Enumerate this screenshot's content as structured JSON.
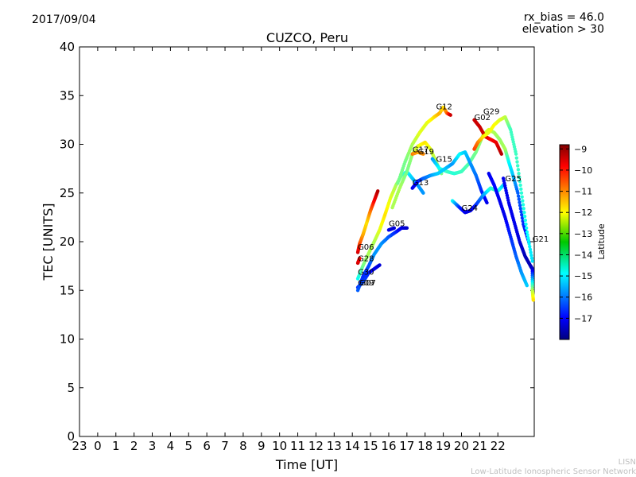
{
  "header": {
    "date": "2017/09/04",
    "rx_bias": "rx_bias = 46.0",
    "elevation": "elevation > 30"
  },
  "footer": {
    "line1": "LISN",
    "line2": "Low-Latitude Ionospheric Sensor Network"
  },
  "chart_data": {
    "type": "scatter",
    "title": "CUZCO, Peru",
    "xlabel": "Time [UT]",
    "ylabel": "TEC [UNITS]",
    "xlim": [
      -1,
      24
    ],
    "ylim": [
      0,
      40
    ],
    "x_tick_values": [
      -1,
      0,
      1,
      2,
      3,
      4,
      5,
      6,
      7,
      8,
      9,
      10,
      11,
      12,
      13,
      14,
      15,
      16,
      17,
      18,
      19,
      20,
      21,
      22
    ],
    "x_tick_labels": [
      "23",
      "0",
      "1",
      "2",
      "3",
      "4",
      "5",
      "6",
      "7",
      "8",
      "9",
      "10",
      "11",
      "12",
      "13",
      "14",
      "15",
      "16",
      "17",
      "18",
      "19",
      "20",
      "21",
      "22"
    ],
    "y_ticks": [
      0,
      5,
      10,
      15,
      20,
      25,
      30,
      35,
      40
    ],
    "colorbar": {
      "label": "Latitude",
      "range": [
        -18,
        -8.8
      ],
      "ticks": [
        -9,
        -10,
        -11,
        -12,
        -13,
        -14,
        -15,
        -16,
        -17
      ],
      "tick_labels": [
        "−9",
        "−10",
        "−11",
        "−12",
        "−13",
        "−14",
        "−15",
        "−16",
        "−17"
      ],
      "colormap": "jet"
    },
    "series": [
      {
        "name": "G06",
        "label_at": [
          14.3,
          19.2
        ],
        "points": [
          [
            14.3,
            18.9,
            -9.5
          ],
          [
            14.4,
            19.8,
            -10.5
          ],
          [
            14.6,
            20.8,
            -11.5
          ],
          [
            14.8,
            22.0,
            -12
          ],
          [
            15.0,
            23.2,
            -11
          ],
          [
            15.2,
            24.2,
            -10
          ],
          [
            15.4,
            25.2,
            -9.3
          ]
        ]
      },
      {
        "name": "G28",
        "label_at": [
          14.3,
          18.0
        ],
        "points": [
          [
            14.3,
            17.8,
            -9.5
          ],
          [
            14.4,
            18.3,
            -10
          ]
        ]
      },
      {
        "name": "G30",
        "label_at": [
          14.3,
          16.6
        ],
        "points": [
          [
            14.3,
            16.2,
            -14.5
          ],
          [
            14.6,
            17.6,
            -13.5
          ],
          [
            14.9,
            18.8,
            -13
          ],
          [
            15.2,
            20.0,
            -13
          ],
          [
            15.5,
            21.2,
            -12.5
          ],
          [
            15.8,
            22.8,
            -12
          ],
          [
            16.1,
            24.5,
            -12.5
          ],
          [
            16.4,
            25.8,
            -13
          ],
          [
            16.7,
            26.8,
            -13.5
          ],
          [
            17.0,
            27.2,
            -14.5
          ],
          [
            17.3,
            26.5,
            -15
          ],
          [
            17.6,
            25.8,
            -15.5
          ],
          [
            17.9,
            25.0,
            -15.5
          ]
        ]
      },
      {
        "name": "G07",
        "label_at": [
          14.4,
          15.5
        ],
        "points": [
          [
            14.3,
            15.3,
            -16.5
          ],
          [
            14.6,
            15.9,
            -16.2
          ],
          [
            14.9,
            16.8,
            -16.5
          ],
          [
            15.2,
            17.2,
            -17
          ],
          [
            15.5,
            17.6,
            -17.2
          ]
        ]
      },
      {
        "name": "G09",
        "label_at": [
          14.3,
          15.5
        ],
        "points": [
          [
            14.3,
            15.0,
            -16
          ],
          [
            14.6,
            16.5,
            -16.5
          ],
          [
            14.9,
            17.5,
            -16.2
          ],
          [
            15.2,
            18.7,
            -15.5
          ],
          [
            15.6,
            19.8,
            -15.5
          ],
          [
            16.0,
            20.5,
            -16
          ],
          [
            16.4,
            21.0,
            -16.5
          ],
          [
            16.7,
            21.4,
            -17
          ],
          [
            17.0,
            21.4,
            -17.3
          ]
        ]
      },
      {
        "name": "G05",
        "label_at": [
          16.0,
          21.6
        ],
        "points": [
          [
            16.0,
            21.2,
            -17
          ],
          [
            16.3,
            21.4,
            -17.2
          ]
        ]
      },
      {
        "name": "G17",
        "label_at": [
          17.3,
          29.2
        ],
        "points": [
          [
            16.2,
            23.5,
            -13
          ],
          [
            16.6,
            25.5,
            -13
          ],
          [
            17.0,
            27.2,
            -13.5
          ],
          [
            17.3,
            29.0,
            -13.2
          ],
          [
            17.6,
            29.8,
            -12.5
          ],
          [
            18.0,
            30.2,
            -12
          ],
          [
            18.3,
            29.5,
            -12.5
          ],
          [
            18.6,
            28.2,
            -13
          ],
          [
            18.9,
            27.0,
            -13.5
          ]
        ]
      },
      {
        "name": "G19",
        "label_at": [
          17.6,
          29.0
        ],
        "points": [
          [
            17.3,
            29.0,
            -11
          ],
          [
            17.6,
            29.2,
            -11.5
          ],
          [
            17.9,
            29.0,
            -11.2
          ]
        ]
      },
      {
        "name": "G12",
        "label_at": [
          18.6,
          33.6
        ],
        "points": [
          [
            16.5,
            26.0,
            -13.5
          ],
          [
            16.9,
            28.2,
            -13.5
          ],
          [
            17.3,
            30.0,
            -13
          ],
          [
            17.7,
            31.2,
            -12.5
          ],
          [
            18.1,
            32.2,
            -12.5
          ],
          [
            18.5,
            32.8,
            -12
          ],
          [
            18.8,
            33.2,
            -11.5
          ],
          [
            19.0,
            33.8,
            -12
          ],
          [
            19.2,
            33.2,
            -11
          ],
          [
            19.4,
            33.0,
            -9.5
          ]
        ]
      },
      {
        "name": "G15",
        "label_at": [
          18.6,
          28.2
        ],
        "points": [
          [
            18.4,
            28.5,
            -15.5
          ],
          [
            18.8,
            27.5,
            -14.5
          ],
          [
            19.2,
            27.2,
            -14
          ],
          [
            19.6,
            27.0,
            -14.2
          ],
          [
            20.0,
            27.2,
            -14
          ],
          [
            20.4,
            28.0,
            -13.8
          ],
          [
            20.8,
            29.2,
            -13.5
          ],
          [
            21.2,
            31.0,
            -13
          ],
          [
            21.5,
            31.5,
            -12.5
          ],
          [
            21.8,
            31.2,
            -13
          ],
          [
            22.1,
            30.5,
            -13.2
          ],
          [
            22.4,
            29.5,
            -13
          ],
          [
            22.6,
            28.2,
            -14.5
          ],
          [
            22.8,
            27.0,
            -15
          ],
          [
            23.1,
            25.0,
            -16
          ],
          [
            23.4,
            21.8,
            -16.5
          ],
          [
            23.7,
            20.0,
            -17
          ]
        ]
      },
      {
        "name": "G13",
        "label_at": [
          17.3,
          25.8
        ],
        "points": [
          [
            17.3,
            25.5,
            -17
          ],
          [
            17.6,
            26.2,
            -16.8
          ],
          [
            17.9,
            26.5,
            -16
          ],
          [
            18.3,
            26.8,
            -15.5
          ],
          [
            18.7,
            27.0,
            -15
          ],
          [
            19.1,
            27.5,
            -15
          ],
          [
            19.5,
            28.0,
            -15.5
          ],
          [
            19.9,
            29.0,
            -14.5
          ],
          [
            20.2,
            29.2,
            -15
          ],
          [
            20.5,
            28.0,
            -15.5
          ],
          [
            20.8,
            26.8,
            -15.8
          ],
          [
            21.1,
            25.2,
            -16.5
          ],
          [
            21.4,
            24.0,
            -17
          ]
        ]
      },
      {
        "name": "G02",
        "label_at": [
          20.7,
          32.5
        ],
        "points": [
          [
            20.7,
            32.5,
            -9.5
          ],
          [
            21.0,
            31.8,
            -9.5
          ],
          [
            21.3,
            30.8,
            -9.5
          ],
          [
            21.6,
            30.5,
            -10
          ],
          [
            21.9,
            30.2,
            -9.8
          ],
          [
            22.2,
            29.0,
            -9.3
          ]
        ]
      },
      {
        "name": "G29",
        "label_at": [
          21.2,
          33.1
        ],
        "points": [
          [
            20.7,
            29.5,
            -10.5
          ],
          [
            20.9,
            30.2,
            -11
          ],
          [
            21.2,
            30.8,
            -12
          ],
          [
            21.5,
            31.2,
            -12.5
          ],
          [
            21.8,
            32.0,
            -12.2
          ],
          [
            22.1,
            32.5,
            -12.5
          ],
          [
            22.4,
            32.8,
            -12.8
          ],
          [
            22.7,
            31.5,
            -14
          ],
          [
            23.0,
            29.0,
            -14
          ],
          [
            23.3,
            25.0,
            -14.2
          ],
          [
            23.6,
            21.0,
            -14.5
          ],
          [
            23.9,
            18.0,
            -14.8
          ]
        ]
      },
      {
        "name": "G24",
        "label_at": [
          20.0,
          23.2
        ],
        "points": [
          [
            19.5,
            24.2,
            -14.5
          ],
          [
            19.9,
            23.5,
            -16.5
          ],
          [
            20.2,
            23.0,
            -17
          ],
          [
            20.5,
            23.2,
            -17.2
          ],
          [
            20.8,
            23.8,
            -16.5
          ],
          [
            21.2,
            24.8,
            -15.5
          ],
          [
            21.6,
            25.5,
            -14.2
          ],
          [
            22.0,
            25.2,
            -14
          ],
          [
            22.3,
            25.8,
            -15
          ]
        ]
      },
      {
        "name": "G25",
        "label_at": [
          22.4,
          26.2
        ],
        "points": [
          [
            21.5,
            27.0,
            -17
          ],
          [
            21.8,
            25.8,
            -16.8
          ],
          [
            22.1,
            24.2,
            -17
          ],
          [
            22.4,
            22.5,
            -17
          ],
          [
            22.7,
            20.5,
            -16.5
          ],
          [
            23.0,
            18.5,
            -16
          ],
          [
            23.3,
            16.8,
            -15.5
          ],
          [
            23.6,
            15.5,
            -15
          ]
        ]
      },
      {
        "name": "G21",
        "label_at": [
          23.9,
          20.0
        ],
        "points": [
          [
            22.3,
            26.5,
            -17
          ],
          [
            22.6,
            24.0,
            -17
          ],
          [
            22.9,
            22.0,
            -17
          ],
          [
            23.2,
            20.0,
            -17.2
          ],
          [
            23.5,
            18.5,
            -17.5
          ],
          [
            23.8,
            17.5,
            -17.5
          ],
          [
            23.9,
            17.2,
            -17.3
          ],
          [
            23.9,
            15.0,
            -13
          ],
          [
            23.95,
            14.0,
            -12
          ]
        ]
      }
    ]
  }
}
